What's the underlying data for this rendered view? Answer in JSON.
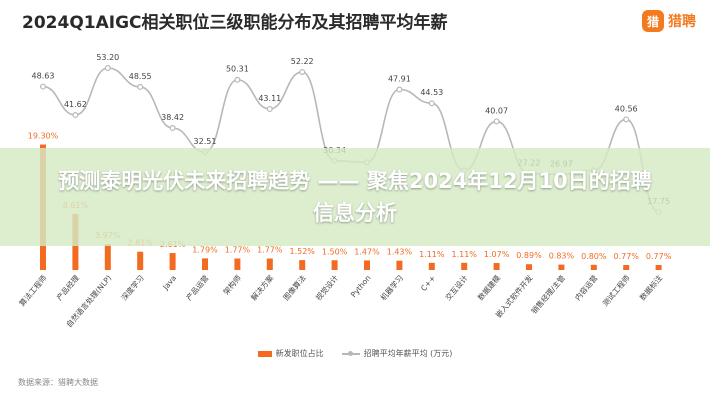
{
  "brand": {
    "logo_glyph": "猎",
    "logo_text": "猎聘",
    "accent": "#f47a20"
  },
  "overlay": {
    "text": "预测泰明光伏未来招聘趋势 —— 聚焦2024年12月10日的招聘信息分析"
  },
  "source_note": "数据来源：猎聘大数据",
  "chart_data": {
    "type": "bar+line",
    "title": "2024Q1AIGC相关职位三级职能分布及其招聘平均年薪",
    "categories": [
      "算法工程师",
      "产品经理",
      "自然语言处理(NLP)",
      "深度学习",
      "Java",
      "产品运营",
      "架构师",
      "解决方案",
      "图像算法",
      "视觉设计",
      "Python",
      "机器学习",
      "C++",
      "交互设计",
      "数据建模",
      "嵌入式软件开发",
      "销售经理/主管",
      "内容运营",
      "测试工程师",
      "数据标注"
    ],
    "series": [
      {
        "name": "新发职位占比",
        "kind": "bar",
        "color": "#f26b21",
        "values": [
          19.3,
          8.61,
          3.97,
          2.81,
          2.61,
          1.79,
          1.77,
          1.77,
          1.52,
          1.5,
          1.47,
          1.43,
          1.11,
          1.11,
          1.07,
          0.89,
          0.83,
          0.8,
          0.77,
          0.77
        ],
        "labels": [
          "19.30%",
          "8.61%",
          "3.97%",
          "2.81%",
          "2.61%",
          "1.79%",
          "1.77%",
          "1.77%",
          "1.52%",
          "1.50%",
          "1.47%",
          "1.43%",
          "1.11%",
          "1.11%",
          "1.07%",
          "0.89%",
          "0.83%",
          "0.80%",
          "0.77%",
          "0.77%"
        ]
      },
      {
        "name": "招聘平均年薪平均 (万元)",
        "kind": "line",
        "color": "#b8b8b8",
        "values": [
          48.63,
          41.62,
          53.2,
          48.55,
          38.42,
          32.51,
          50.31,
          43.11,
          52.22,
          30.34,
          30.0,
          47.91,
          44.53,
          28.0,
          40.07,
          27.22,
          26.97,
          28.0,
          40.56,
          17.75
        ],
        "labels": [
          "48.63",
          "41.62",
          "53.20",
          "48.55",
          "38.42",
          "32.51",
          "50.31",
          "43.11",
          "52.22",
          "30.34",
          "",
          "47.91",
          "44.53",
          "",
          "40.07",
          "27.22",
          "26.97",
          "",
          "40.56",
          "17.75"
        ]
      }
    ],
    "legend": {
      "position": "bottom",
      "items": [
        "新发职位占比",
        "招聘平均年薪平均 (万元)"
      ]
    },
    "grid": false
  }
}
